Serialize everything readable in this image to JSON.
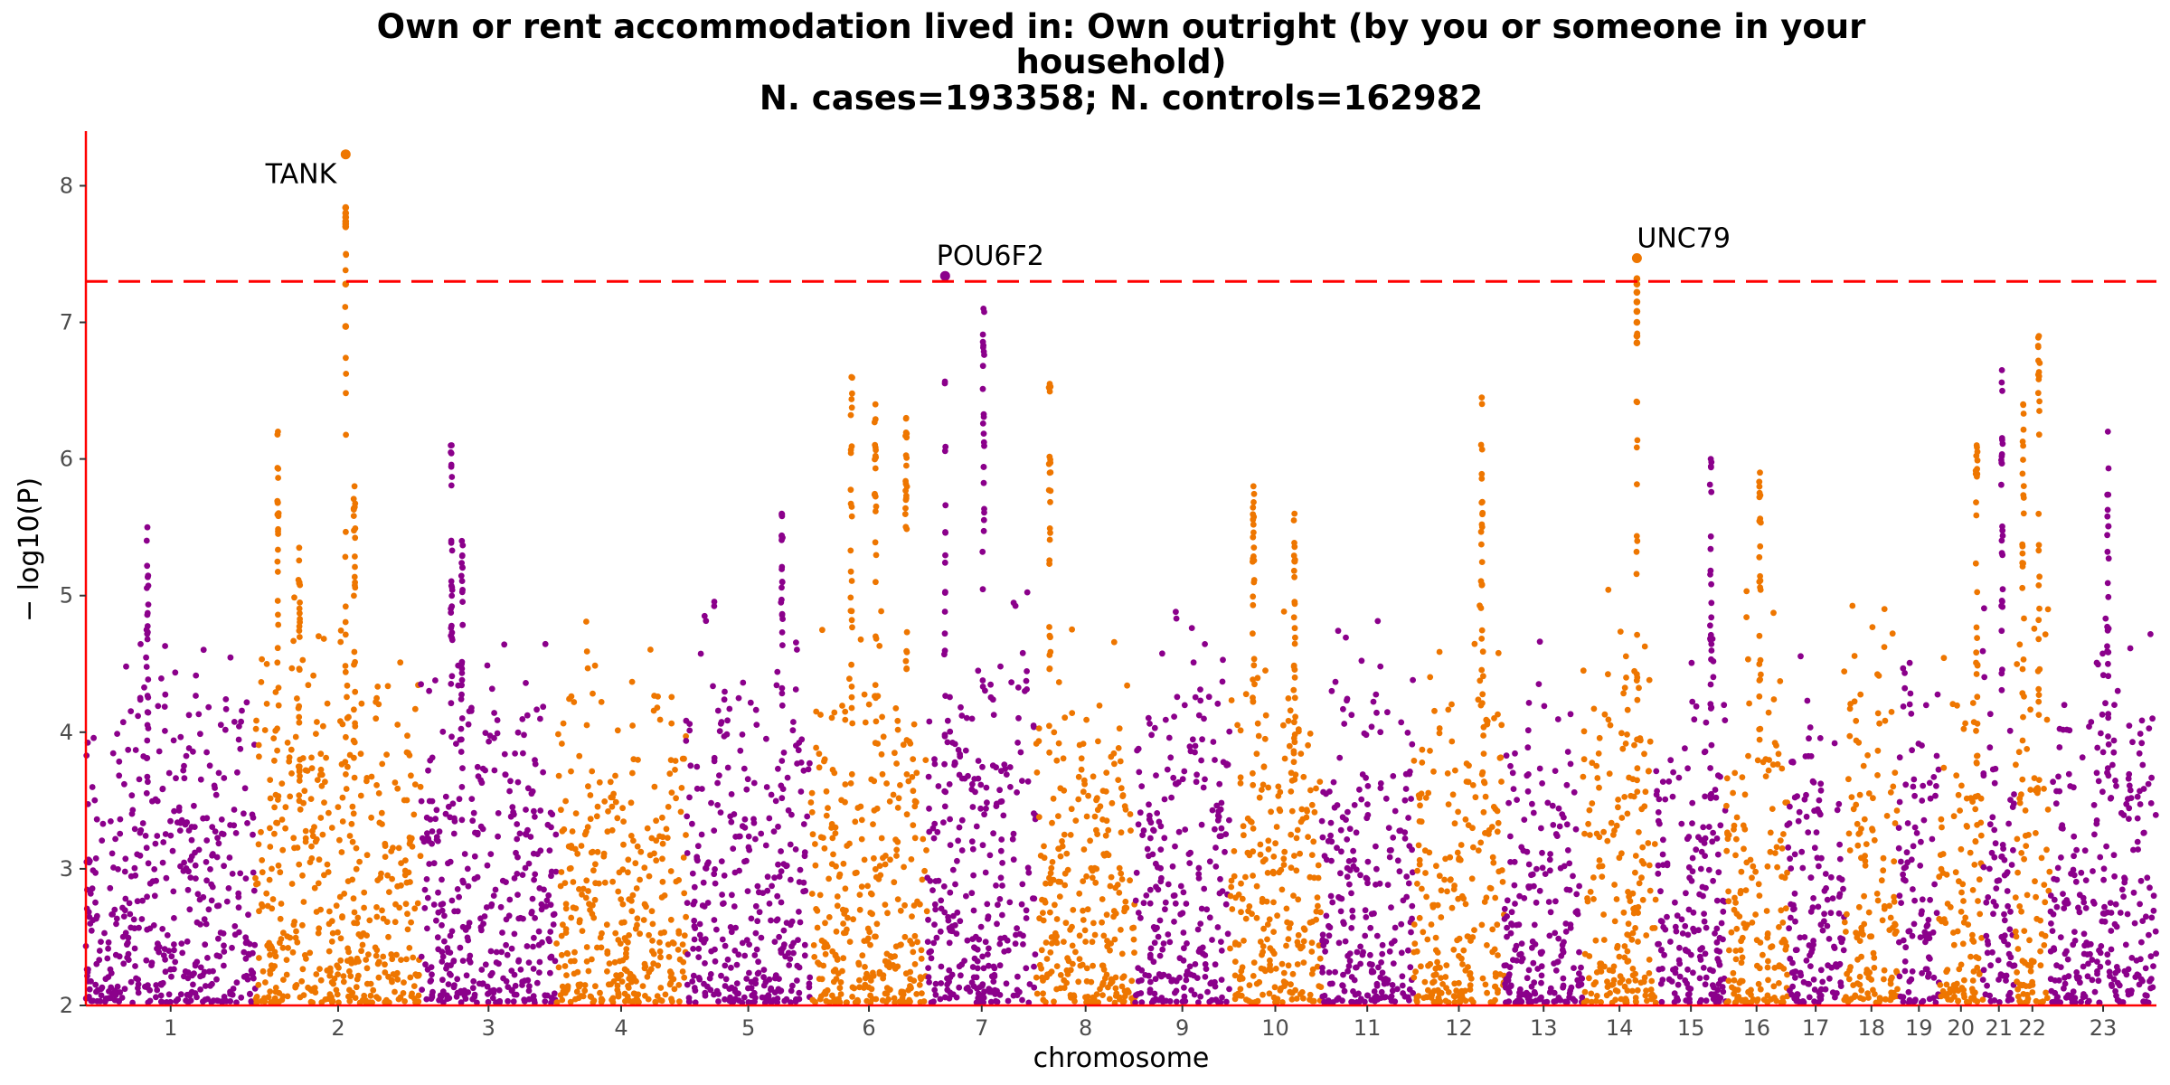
{
  "chart_data": {
    "type": "scatter",
    "title_lines": [
      "Own or rent accommodation lived in: Own outright (by you or someone in your",
      "household)",
      "N. cases=193358; N. controls=162982"
    ],
    "xlabel": "chromosome",
    "ylabel": "− log10(P)",
    "ylim": [
      2,
      8.4
    ],
    "y_ticks": [
      2,
      3,
      4,
      5,
      6,
      7,
      8
    ],
    "significance_threshold": 7.3,
    "colors": {
      "odd": "#8B008B",
      "even": "#EE7600",
      "threshold": "#FF0000",
      "axis": "#FF0000"
    },
    "chromosomes": [
      {
        "label": "1",
        "start": 0,
        "end": 248
      },
      {
        "label": "2",
        "start": 248,
        "end": 490
      },
      {
        "label": "3",
        "start": 490,
        "end": 688
      },
      {
        "label": "4",
        "start": 688,
        "end": 878
      },
      {
        "label": "5",
        "start": 878,
        "end": 1060
      },
      {
        "label": "6",
        "start": 1060,
        "end": 1231
      },
      {
        "label": "7",
        "start": 1231,
        "end": 1390
      },
      {
        "label": "8",
        "start": 1390,
        "end": 1535
      },
      {
        "label": "9",
        "start": 1535,
        "end": 1673
      },
      {
        "label": "10",
        "start": 1673,
        "end": 1807
      },
      {
        "label": "11",
        "start": 1807,
        "end": 1942
      },
      {
        "label": "12",
        "start": 1942,
        "end": 2075
      },
      {
        "label": "13",
        "start": 2075,
        "end": 2190
      },
      {
        "label": "14",
        "start": 2190,
        "end": 2297
      },
      {
        "label": "15",
        "start": 2297,
        "end": 2399
      },
      {
        "label": "16",
        "start": 2399,
        "end": 2489
      },
      {
        "label": "17",
        "start": 2489,
        "end": 2572
      },
      {
        "label": "18",
        "start": 2572,
        "end": 2652
      },
      {
        "label": "19",
        "start": 2652,
        "end": 2711
      },
      {
        "label": "20",
        "start": 2711,
        "end": 2775
      },
      {
        "label": "21",
        "start": 2775,
        "end": 2822
      },
      {
        "label": "22",
        "start": 2822,
        "end": 2873
      },
      {
        "label": "23",
        "start": 2873,
        "end": 3029
      }
    ],
    "peaks": [
      {
        "chrom": "1",
        "pos": 90,
        "top": 5.5
      },
      {
        "chrom": "2",
        "pos": 33,
        "top": 6.2
      },
      {
        "chrom": "2",
        "pos": 64,
        "top": 5.35
      },
      {
        "chrom": "2",
        "pos": 145,
        "top": 5.8
      },
      {
        "chrom": "3",
        "pos": 45,
        "top": 6.1
      },
      {
        "chrom": "3",
        "pos": 60,
        "top": 5.4
      },
      {
        "chrom": "5",
        "pos": 140,
        "top": 5.6
      },
      {
        "chrom": "6",
        "pos": 60,
        "top": 6.6
      },
      {
        "chrom": "6",
        "pos": 95,
        "top": 6.4
      },
      {
        "chrom": "6",
        "pos": 140,
        "top": 6.3
      },
      {
        "chrom": "7",
        "pos": 82,
        "top": 7.1
      },
      {
        "chrom": "8",
        "pos": 20,
        "top": 6.55
      },
      {
        "chrom": "10",
        "pos": 35,
        "top": 5.8
      },
      {
        "chrom": "10",
        "pos": 95,
        "top": 5.6
      },
      {
        "chrom": "12",
        "pos": 100,
        "top": 6.45
      },
      {
        "chrom": "15",
        "pos": 80,
        "top": 6.0
      },
      {
        "chrom": "16",
        "pos": 50,
        "top": 5.9
      },
      {
        "chrom": "20",
        "pos": 55,
        "top": 6.1
      },
      {
        "chrom": "21",
        "pos": 28,
        "top": 6.65
      },
      {
        "chrom": "22",
        "pos": 12,
        "top": 6.4
      },
      {
        "chrom": "22",
        "pos": 35,
        "top": 6.9
      },
      {
        "chrom": "23",
        "pos": 85,
        "top": 6.2
      }
    ],
    "hits": [
      {
        "chrom": "2",
        "pos": 132,
        "values": [
          8.23,
          7.84,
          7.8,
          7.77,
          7.74,
          7.72,
          7.7,
          7.28,
          6.97
        ]
      },
      {
        "chrom": "7",
        "pos": 26,
        "values": [
          7.34
        ]
      },
      {
        "chrom": "14",
        "pos": 79,
        "values": [
          7.47,
          7.32,
          7.28,
          7.22,
          7.15,
          7.08,
          7.0,
          6.9,
          6.85
        ]
      }
    ],
    "annotations": [
      {
        "label": "TANK",
        "chrom": "2",
        "pos": 132,
        "y": 8.23,
        "anchor": "end"
      },
      {
        "label": "POU6F2",
        "chrom": "7",
        "pos": 26,
        "y": 7.34,
        "anchor": "middle"
      },
      {
        "label": "UNC79",
        "chrom": "14",
        "pos": 79,
        "y": 7.47,
        "anchor": "start"
      }
    ]
  }
}
